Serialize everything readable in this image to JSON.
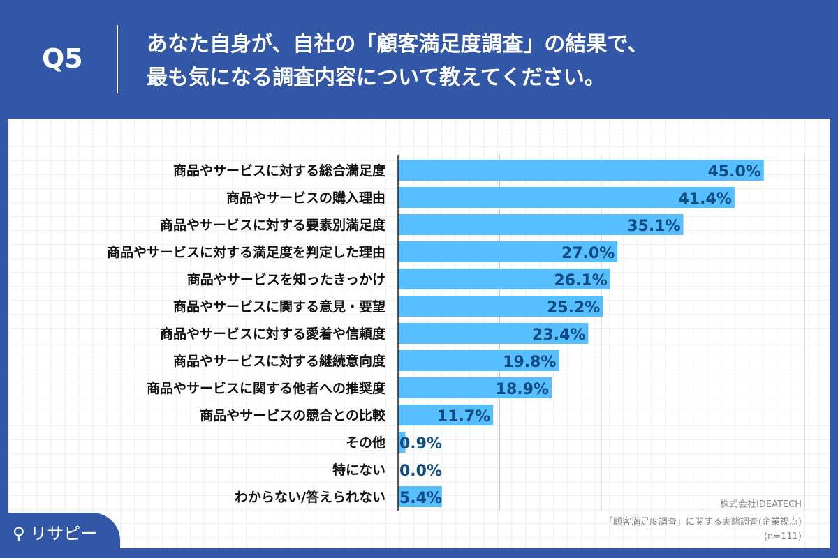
{
  "header": {
    "question": "Q5",
    "title_line1": "あなた自身が、自社の「顧客満足度調査」の結果で、",
    "title_line2": "最も気になる調査内容について教えてください。"
  },
  "colors": {
    "background": "#3257a7",
    "bar": "#57bfff",
    "value_text": "#0f4c81"
  },
  "chart_data": {
    "type": "bar",
    "orientation": "horizontal",
    "xlim": [
      0,
      50
    ],
    "grid": true,
    "gridlines": [
      12.5,
      25,
      37.5,
      50
    ],
    "categories": [
      "商品やサービスに対する総合満足度",
      "商品やサービスの購入理由",
      "商品やサービスに対する要素別満足度",
      "商品やサービスに対する満足度を判定した理由",
      "商品やサービスを知ったきっかけ",
      "商品やサービスに関する意見・要望",
      "商品やサービスに対する愛着や信頼度",
      "商品やサービスに対する継続意向度",
      "商品やサービスに関する他者への推奨度",
      "商品やサービスの競合との比較",
      "その他",
      "特にない",
      "わからない/答えられない"
    ],
    "values": [
      45.0,
      41.4,
      35.1,
      27.0,
      26.1,
      25.2,
      23.4,
      19.8,
      18.9,
      11.7,
      0.9,
      0.0,
      5.4
    ],
    "value_labels": [
      "45.0%",
      "41.4%",
      "35.1%",
      "27.0%",
      "26.1%",
      "25.2%",
      "23.4%",
      "19.8%",
      "18.9%",
      "11.7%",
      "0.9%",
      "0.0%",
      "5.4%"
    ]
  },
  "footer": {
    "company": "株式会社IDEATECH",
    "survey": "「顧客満足度調査」に関する実態調査(企業視点)",
    "sample": "(n=111)",
    "logo_text": "リサピー"
  }
}
